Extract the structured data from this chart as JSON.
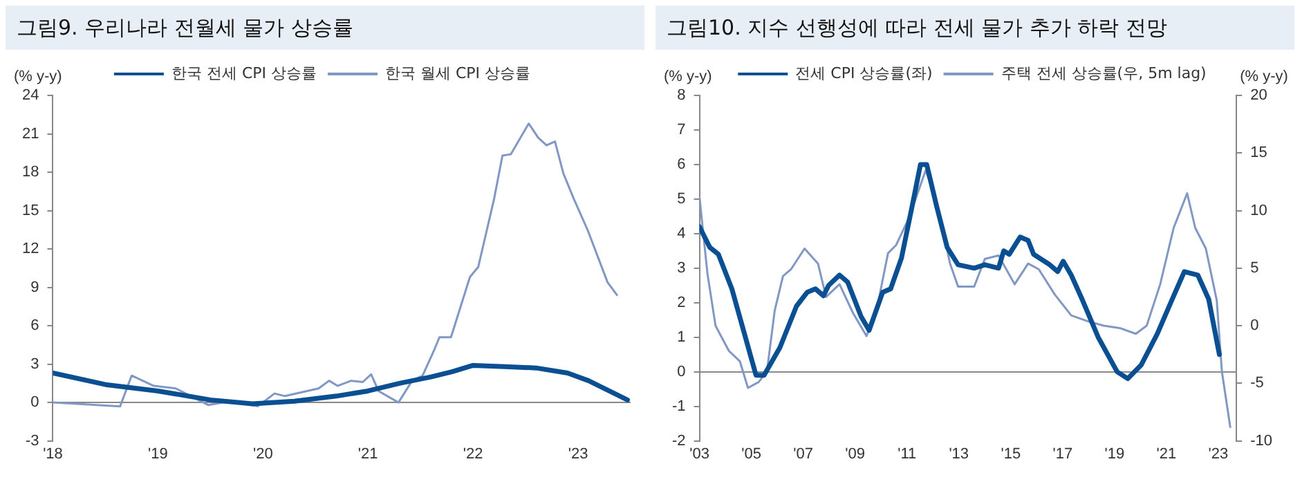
{
  "chart_data": [
    {
      "type": "line",
      "title": "그림9. 우리나라 전월세 물가 상승률",
      "ylabel": "(% y-y)",
      "legend": "top",
      "marker": "none",
      "line_style": "solid",
      "xlim": [
        2018,
        2023.5
      ],
      "xticks": [
        {
          "value": 2018,
          "label": "'18"
        },
        {
          "value": 2019,
          "label": "'19"
        },
        {
          "value": 2020,
          "label": "'20"
        },
        {
          "value": 2021,
          "label": "'21"
        },
        {
          "value": 2022,
          "label": "'22"
        },
        {
          "value": 2023,
          "label": "'23"
        }
      ],
      "ylim": [
        -3,
        24
      ],
      "yticks": [
        -3,
        0,
        3,
        6,
        9,
        12,
        15,
        18,
        21,
        24
      ],
      "series": [
        {
          "name": "한국 전세 CPI 상승률",
          "color": "#0b4f93",
          "x": [
            2018,
            2018.5,
            2019,
            2019.5,
            2019.9,
            2020.3,
            2020.7,
            2021,
            2021.3,
            2021.6,
            2021.8,
            2022,
            2022.3,
            2022.6,
            2022.9,
            2023.1,
            2023.47
          ],
          "values": [
            2.3,
            1.4,
            0.9,
            0.2,
            -0.1,
            0.1,
            0.5,
            0.9,
            1.5,
            2.0,
            2.4,
            2.9,
            2.8,
            2.7,
            2.3,
            1.7,
            0.2
          ]
        },
        {
          "name": "한국 월세 CPI 상승률",
          "color": "#8197c4",
          "x": [
            2018,
            2018.64,
            2018.75,
            2018.96,
            2019.17,
            2019.48,
            2019.69,
            2019.95,
            2020.11,
            2020.21,
            2020.53,
            2020.63,
            2020.71,
            2020.84,
            2020.95,
            2021.03,
            2021.1,
            2021.29,
            2021.42,
            2021.52,
            2021.63,
            2021.68,
            2021.79,
            2021.97,
            2022.05,
            2022.2,
            2022.28,
            2022.36,
            2022.53,
            2022.62,
            2022.7,
            2022.78,
            2022.86,
            2022.96,
            2023.09,
            2023.28,
            2023.37
          ],
          "values": [
            0,
            -0.3,
            2.1,
            1.3,
            1.1,
            -0.2,
            0.1,
            -0.3,
            0.7,
            0.5,
            1.1,
            1.7,
            1.3,
            1.7,
            1.6,
            2.2,
            0.9,
            0,
            1.7,
            2.1,
            4.1,
            5.1,
            5.1,
            9.8,
            10.6,
            15.9,
            19.3,
            19.4,
            21.8,
            20.7,
            20.1,
            20.4,
            17.9,
            15.9,
            13.5,
            9.4,
            8.4
          ]
        }
      ]
    },
    {
      "type": "line",
      "title": "그림10. 지수 선행성에 따라 전세 물가 추가 하락 전망",
      "ylabel": "(% y-y)",
      "y2label": "(% y-y)",
      "legend": "top",
      "marker": "none",
      "line_style": "solid",
      "xlim": [
        2003,
        2023.7
      ],
      "xticks": [
        {
          "value": 2003,
          "label": "'03"
        },
        {
          "value": 2005,
          "label": "'05"
        },
        {
          "value": 2007,
          "label": "'07"
        },
        {
          "value": 2009,
          "label": "'09"
        },
        {
          "value": 2011,
          "label": "'11"
        },
        {
          "value": 2013,
          "label": "'13"
        },
        {
          "value": 2015,
          "label": "'15"
        },
        {
          "value": 2017,
          "label": "'17"
        },
        {
          "value": 2019,
          "label": "'19"
        },
        {
          "value": 2021,
          "label": "'21"
        },
        {
          "value": 2023,
          "label": "'23"
        }
      ],
      "ylim": [
        -2,
        8
      ],
      "yticks": [
        -2,
        -1,
        0,
        1,
        2,
        3,
        4,
        5,
        6,
        7,
        8
      ],
      "y2lim": [
        -10,
        20
      ],
      "y2ticks": [
        -10,
        -5,
        0,
        5,
        10,
        15,
        20
      ],
      "series": [
        {
          "name": "전세 CPI 상승률(좌)",
          "color": "#0b4f93",
          "x": [
            2003,
            2003.4,
            2003.73,
            2004.25,
            2004.66,
            2005.18,
            2005.49,
            2006.1,
            2006.74,
            2007.15,
            2007.47,
            2007.78,
            2007.98,
            2008.4,
            2008.71,
            2009.23,
            2009.54,
            2010.06,
            2010.37,
            2010.79,
            2011.2,
            2011.52,
            2011.76,
            2012.14,
            2012.55,
            2012.97,
            2013.59,
            2014,
            2014.53,
            2014.73,
            2014.94,
            2015.36,
            2015.67,
            2015.88,
            2016.5,
            2016.81,
            2017.02,
            2017.33,
            2017.75,
            2018.37,
            2019.1,
            2019.51,
            2020.03,
            2020.65,
            2021.28,
            2021.69,
            2022.21,
            2022.63,
            2023.04
          ],
          "values": [
            4.2,
            3.6,
            3.4,
            2.4,
            1.3,
            -0.1,
            -0.1,
            0.7,
            1.9,
            2.3,
            2.4,
            2.2,
            2.5,
            2.8,
            2.6,
            1.6,
            1.2,
            2.3,
            2.4,
            3.3,
            4.8,
            6.0,
            6.0,
            4.8,
            3.6,
            3.1,
            3.0,
            3.1,
            3.0,
            3.5,
            3.4,
            3.9,
            3.8,
            3.4,
            3.1,
            2.9,
            3.2,
            2.8,
            2.1,
            1.0,
            0,
            -0.2,
            0.2,
            1.1,
            2.2,
            2.9,
            2.8,
            2.1,
            0.5
          ]
        },
        {
          "name": "주택 전세 상승률(우, 5m lag)",
          "color": "#8197c4",
          "axis": "y2",
          "x": [
            2003,
            2003.31,
            2003.62,
            2003.83,
            2004.14,
            2004.56,
            2004.87,
            2005.28,
            2005.6,
            2005.9,
            2006.22,
            2006.53,
            2007.05,
            2007.57,
            2007.88,
            2008.4,
            2008.92,
            2009.44,
            2009.85,
            2010.27,
            2010.58,
            2011,
            2011.3,
            2011.72,
            2012.14,
            2012.66,
            2012.97,
            2013.59,
            2014,
            2014.53,
            2015.15,
            2015.67,
            2016.08,
            2016.7,
            2017.33,
            2017.95,
            2018.58,
            2019.2,
            2019.82,
            2020.24,
            2020.76,
            2021.28,
            2021.8,
            2022.11,
            2022.52,
            2022.94,
            2023.14,
            2023.46
          ],
          "values": [
            11.2,
            4.5,
            0,
            -0.9,
            -2.2,
            -3.1,
            -5.4,
            -4.9,
            -4.0,
            1.3,
            4.3,
            4.9,
            6.7,
            5.4,
            2.5,
            3.6,
            1.1,
            -0.9,
            1.6,
            6.3,
            7.0,
            9.0,
            10.8,
            13.5,
            10.8,
            5.4,
            3.4,
            3.4,
            5.8,
            6.1,
            3.6,
            5.4,
            4.9,
            2.7,
            0.9,
            0.4,
            0,
            -0.2,
            -0.7,
            0,
            3.6,
            8.5,
            11.5,
            8.5,
            6.7,
            2.2,
            -4.0,
            -8.8
          ]
        }
      ]
    }
  ]
}
